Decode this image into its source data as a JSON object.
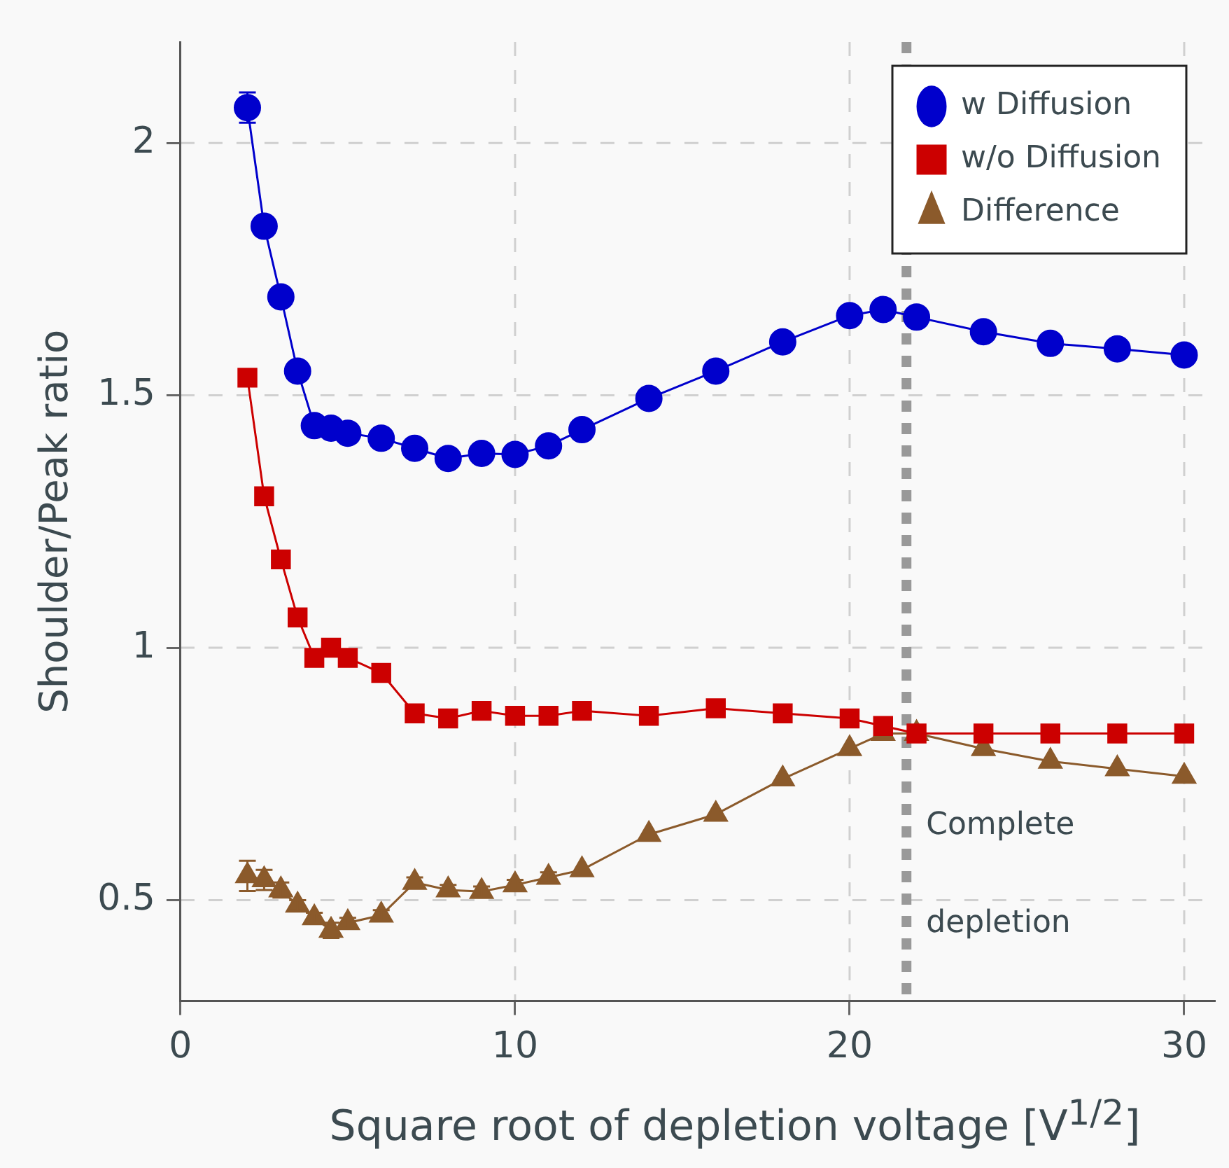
{
  "chart_data": {
    "type": "line",
    "xlabel": "Square root of depletion voltage [V$^{1/2}$]",
    "ylabel": "Shoulder/Peak ratio",
    "x": [
      2,
      2.5,
      3,
      3.5,
      4,
      4.5,
      5,
      6,
      7,
      8,
      9,
      10,
      11,
      12,
      14,
      16,
      18,
      20,
      21,
      22,
      24,
      26,
      28,
      30
    ],
    "series": [
      {
        "name": "w Diffusion",
        "color": "#0000cc",
        "marker": "circle",
        "values": [
          2.07,
          1.835,
          1.695,
          1.548,
          1.44,
          1.435,
          1.425,
          1.415,
          1.395,
          1.375,
          1.385,
          1.383,
          1.4,
          1.432,
          1.494,
          1.548,
          1.606,
          1.658,
          1.67,
          1.655,
          1.626,
          1.603,
          1.592,
          1.58
        ],
        "errors": [
          0.03,
          null,
          null,
          null,
          null,
          null,
          null,
          null,
          null,
          null,
          null,
          null,
          null,
          null,
          null,
          null,
          null,
          null,
          null,
          null,
          null,
          null,
          null,
          null
        ]
      },
      {
        "name": "w/o Diffusion",
        "color": "#cc0000",
        "marker": "square",
        "values": [
          1.535,
          1.3,
          1.175,
          1.06,
          0.98,
          1.0,
          0.98,
          0.95,
          0.87,
          0.86,
          0.875,
          0.865,
          0.865,
          0.875,
          0.865,
          0.88,
          0.87,
          0.86,
          0.845,
          0.83,
          0.83,
          0.83,
          0.83,
          0.83
        ]
      },
      {
        "name": "Difference",
        "color": "#8b5a2b",
        "marker": "triangle",
        "values": [
          0.548,
          0.54,
          0.52,
          0.49,
          0.465,
          0.44,
          0.455,
          0.47,
          0.535,
          0.52,
          0.517,
          0.53,
          0.545,
          0.56,
          0.63,
          0.67,
          0.74,
          0.8,
          0.83,
          0.83,
          0.8,
          0.775,
          0.76,
          0.745
        ],
        "errors": [
          0.03,
          0.02,
          0.015,
          0.01,
          0.01,
          0.015,
          0.01,
          0.01,
          0.01,
          0.01,
          0.01,
          0.01,
          0.01,
          null,
          null,
          null,
          null,
          null,
          null,
          null,
          null,
          null,
          null,
          null
        ]
      }
    ],
    "xlim": [
      0,
      30.9
    ],
    "ylim": [
      0.3,
      2.2
    ],
    "xticks": [
      0,
      10,
      20,
      30
    ],
    "yticks": [
      0.5,
      1,
      1.5,
      2
    ],
    "ref_lines": [
      {
        "axis": "x",
        "value": 21.7,
        "label": "Complete depletion",
        "color": "#999999",
        "line_style": "dashed"
      }
    ],
    "grid": true,
    "legend": "top right",
    "line_style": "solid"
  }
}
